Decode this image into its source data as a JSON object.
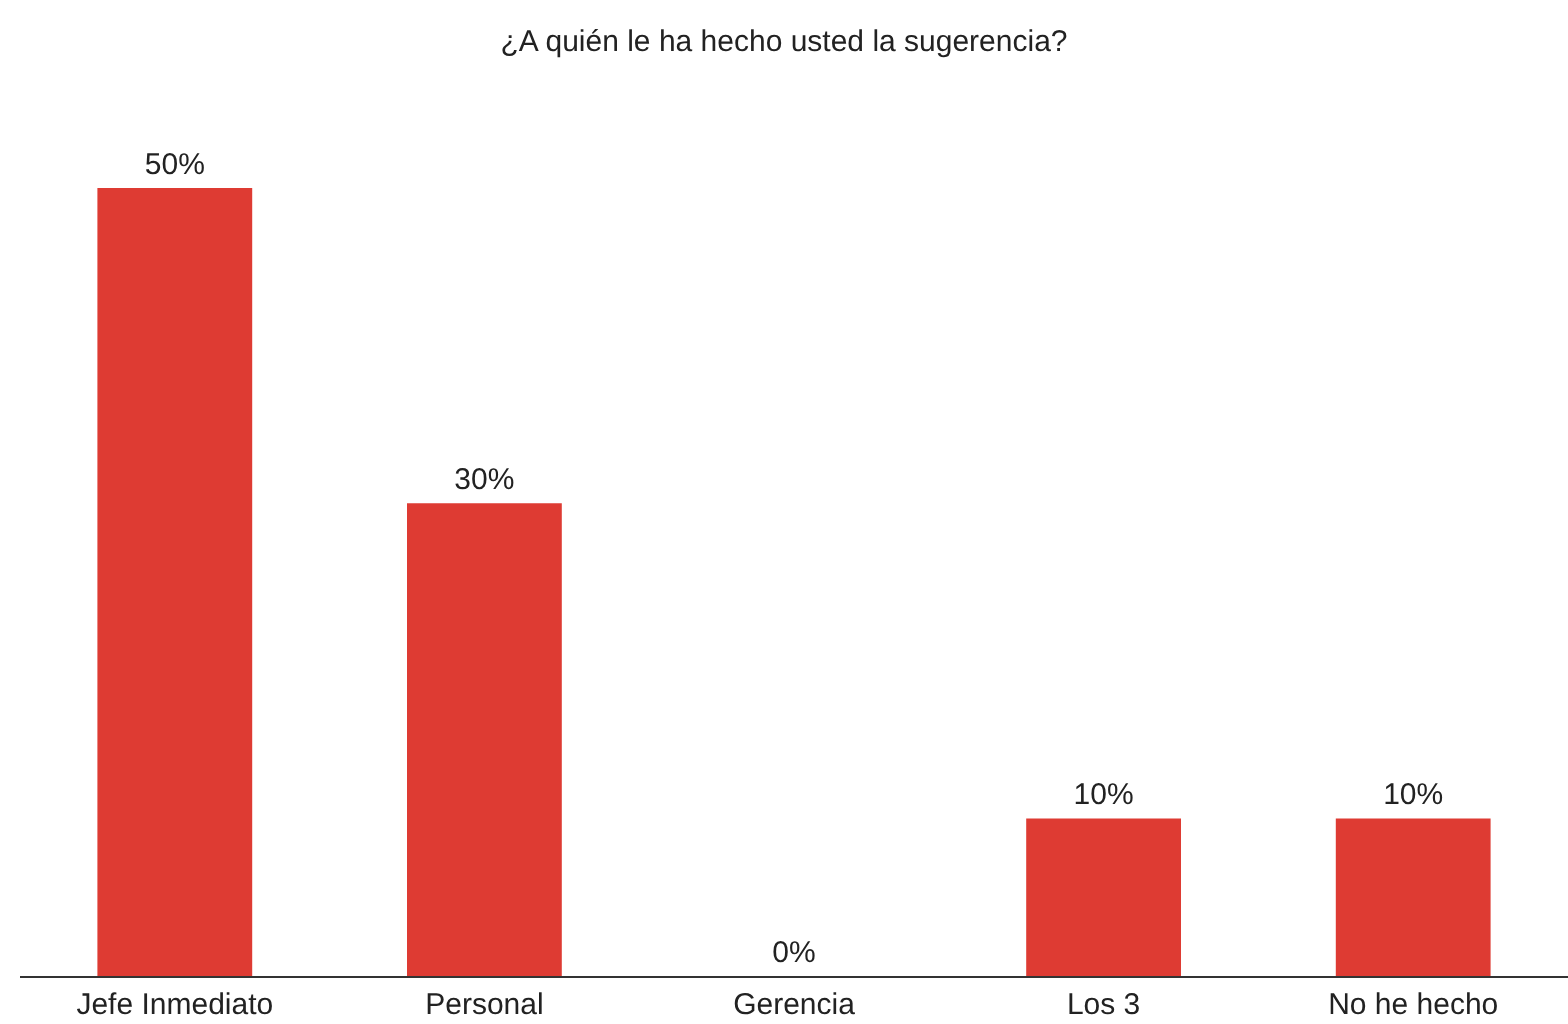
{
  "chart_data": {
    "type": "bar",
    "title": "¿A quién le ha hecho usted la sugerencia?",
    "categories": [
      "Jefe Inmediato",
      "Personal",
      "Gerencia",
      "Los 3",
      "No he hecho"
    ],
    "values": [
      50,
      30,
      0,
      10,
      10
    ],
    "value_labels": [
      "50%",
      "30%",
      "0%",
      "10%",
      "10%"
    ],
    "color": "#de3b33",
    "ylim": [
      0,
      50
    ],
    "tick_labels": "x"
  }
}
